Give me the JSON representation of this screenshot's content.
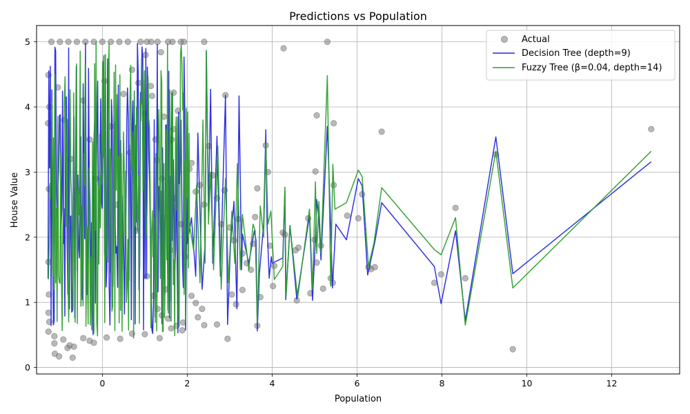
{
  "chart_data": {
    "type": "scatter",
    "title": "Predictions vs Population",
    "xlabel": "Population",
    "ylabel": "House Value",
    "xlim": [
      -1.55,
      13.6
    ],
    "ylim": [
      -0.1,
      5.25
    ],
    "xticks": [
      0,
      2,
      4,
      6,
      8,
      10,
      12
    ],
    "yticks": [
      0,
      1,
      2,
      3,
      4,
      5
    ],
    "grid": true,
    "legend_position": "top-right",
    "series": [
      {
        "name": "Actual",
        "kind": "scatter",
        "color": "#808080",
        "points": [
          [
            -1.27,
            4.49
          ],
          [
            -1.25,
            4.0
          ],
          [
            -1.28,
            3.75
          ],
          [
            -1.26,
            2.74
          ],
          [
            -1.27,
            1.62
          ],
          [
            -1.26,
            1.12
          ],
          [
            -1.27,
            0.84
          ],
          [
            -1.25,
            0.7
          ],
          [
            -1.27,
            0.55
          ],
          [
            -1.13,
            0.48
          ],
          [
            -1.13,
            0.37
          ],
          [
            -1.12,
            0.21
          ],
          [
            -1.02,
            0.17
          ],
          [
            -0.92,
            0.43
          ],
          [
            -0.82,
            0.3
          ],
          [
            -0.77,
            0.34
          ],
          [
            -0.7,
            0.15
          ],
          [
            -0.67,
            0.32
          ],
          [
            -0.45,
            0.45
          ],
          [
            -0.3,
            0.41
          ],
          [
            -0.2,
            0.38
          ],
          [
            0.1,
            0.46
          ],
          [
            0.42,
            0.44
          ],
          [
            0.7,
            0.52
          ],
          [
            1.0,
            0.51
          ],
          [
            1.35,
            0.45
          ],
          [
            -1.2,
            5.0
          ],
          [
            -1.0,
            5.0
          ],
          [
            -0.8,
            5.0
          ],
          [
            -0.6,
            5.0
          ],
          [
            -0.4,
            5.0
          ],
          [
            -0.2,
            5.0
          ],
          [
            0.0,
            5.0
          ],
          [
            0.2,
            5.0
          ],
          [
            0.4,
            5.0
          ],
          [
            0.6,
            5.0
          ],
          [
            0.9,
            5.0
          ],
          [
            1.05,
            5.0
          ],
          [
            1.15,
            5.0
          ],
          [
            1.3,
            5.0
          ],
          [
            1.55,
            5.0
          ],
          [
            1.65,
            5.0
          ],
          [
            1.85,
            5.0
          ],
          [
            1.92,
            5.0
          ],
          [
            2.4,
            5.0
          ],
          [
            -1.05,
            4.3
          ],
          [
            -0.9,
            3.8
          ],
          [
            -0.75,
            3.2
          ],
          [
            -0.6,
            2.7
          ],
          [
            -0.45,
            4.1
          ],
          [
            -0.3,
            3.5
          ],
          [
            -0.15,
            2.9
          ],
          [
            0.05,
            4.4
          ],
          [
            0.2,
            3.7
          ],
          [
            0.35,
            2.5
          ],
          [
            0.5,
            4.2
          ],
          [
            0.65,
            3.3
          ],
          [
            0.8,
            2.1
          ],
          [
            0.7,
            4.57
          ],
          [
            0.85,
            4.37
          ],
          [
            1.02,
            4.8
          ],
          [
            1.38,
            4.84
          ],
          [
            1.14,
            4.32
          ],
          [
            1.0,
            3.9
          ],
          [
            1.17,
            4.17
          ],
          [
            1.28,
            3.18
          ],
          [
            1.45,
            3.85
          ],
          [
            1.55,
            3.46
          ],
          [
            1.63,
            3.5
          ],
          [
            1.68,
            3.66
          ],
          [
            1.68,
            4.22
          ],
          [
            1.78,
            3.94
          ],
          [
            1.25,
            3.5
          ],
          [
            1.4,
            2.9
          ],
          [
            1.5,
            2.3
          ],
          [
            1.6,
            1.8
          ],
          [
            1.7,
            2.6
          ],
          [
            1.85,
            2.2
          ],
          [
            1.95,
            1.7
          ],
          [
            2.05,
            3.05
          ],
          [
            2.1,
            3.14
          ],
          [
            2.2,
            2.7
          ],
          [
            2.3,
            2.8
          ],
          [
            2.4,
            2.5
          ],
          [
            2.5,
            3.4
          ],
          [
            2.6,
            2.95
          ],
          [
            2.7,
            2.6
          ],
          [
            2.8,
            2.2
          ],
          [
            2.88,
            2.72
          ],
          [
            2.9,
            4.18
          ],
          [
            3.0,
            2.15
          ],
          [
            3.1,
            1.95
          ],
          [
            3.2,
            2.28
          ],
          [
            3.3,
            1.75
          ],
          [
            3.4,
            1.6
          ],
          [
            3.55,
            1.9
          ],
          [
            3.6,
            2.31
          ],
          [
            3.65,
            2.75
          ],
          [
            3.85,
            3.41
          ],
          [
            3.9,
            3.0
          ],
          [
            3.95,
            1.87
          ],
          [
            1.05,
            1.4
          ],
          [
            1.2,
            1.1
          ],
          [
            1.3,
            0.9
          ],
          [
            1.4,
            0.8
          ],
          [
            1.5,
            1.2
          ],
          [
            1.55,
            0.75
          ],
          [
            1.62,
            0.6
          ],
          [
            1.75,
            0.64
          ],
          [
            1.88,
            0.57
          ],
          [
            1.9,
            0.69
          ],
          [
            2.1,
            1.1
          ],
          [
            2.2,
            0.99
          ],
          [
            2.25,
            0.77
          ],
          [
            2.35,
            0.9
          ],
          [
            2.4,
            0.65
          ],
          [
            2.7,
            0.66
          ],
          [
            2.95,
            0.44
          ],
          [
            3.05,
            1.12
          ],
          [
            3.15,
            0.97
          ],
          [
            3.3,
            1.19
          ],
          [
            3.5,
            1.5
          ],
          [
            3.65,
            0.64
          ],
          [
            3.72,
            1.08
          ],
          [
            4.02,
            1.25
          ],
          [
            4.05,
            1.56
          ],
          [
            4.27,
            4.9
          ],
          [
            4.25,
            2.07
          ],
          [
            4.3,
            2.04
          ],
          [
            4.55,
            1.8
          ],
          [
            4.58,
            1.03
          ],
          [
            4.62,
            1.84
          ],
          [
            4.85,
            2.29
          ],
          [
            4.9,
            1.14
          ],
          [
            5.0,
            1.96
          ],
          [
            5.02,
            3.01
          ],
          [
            5.05,
            3.87
          ],
          [
            5.05,
            1.61
          ],
          [
            5.15,
            1.87
          ],
          [
            5.2,
            1.21
          ],
          [
            5.3,
            5.0
          ],
          [
            5.38,
            1.37
          ],
          [
            5.43,
            1.3
          ],
          [
            5.45,
            2.8
          ],
          [
            5.45,
            3.75
          ],
          [
            5.77,
            2.33
          ],
          [
            6.03,
            2.29
          ],
          [
            6.12,
            2.66
          ],
          [
            6.27,
            1.54
          ],
          [
            6.33,
            1.51
          ],
          [
            6.42,
            1.54
          ],
          [
            6.58,
            3.62
          ],
          [
            7.82,
            1.3
          ],
          [
            7.98,
            1.43
          ],
          [
            8.32,
            2.45
          ],
          [
            8.55,
            1.37
          ],
          [
            9.27,
            3.27
          ],
          [
            9.67,
            0.28
          ],
          [
            12.93,
            3.66
          ]
        ]
      },
      {
        "name": "Decision Tree (depth=9)",
        "kind": "line",
        "color": "#2727e0",
        "cluster": {
          "x_start": -1.28,
          "x_end": 2.0,
          "step": 0.018,
          "y_min": 0.5,
          "y_max": 5.0,
          "seed": 7
        },
        "points": [
          [
            2.0,
            1.9
          ],
          [
            2.1,
            2.3
          ],
          [
            2.2,
            1.4
          ],
          [
            2.25,
            3.6
          ],
          [
            2.35,
            1.2
          ],
          [
            2.42,
            1.9
          ],
          [
            2.45,
            4.85
          ],
          [
            2.5,
            2.4
          ],
          [
            2.55,
            4.27
          ],
          [
            2.6,
            1.6
          ],
          [
            2.7,
            3.55
          ],
          [
            2.78,
            1.4
          ],
          [
            2.9,
            4.18
          ],
          [
            2.95,
            0.66
          ],
          [
            3.02,
            1.9
          ],
          [
            3.1,
            2.55
          ],
          [
            3.17,
            0.9
          ],
          [
            3.22,
            4.17
          ],
          [
            3.28,
            1.5
          ],
          [
            3.3,
            2.05
          ],
          [
            3.45,
            1.6
          ],
          [
            3.58,
            2.1
          ],
          [
            3.62,
            1.95
          ],
          [
            3.65,
            0.56
          ],
          [
            3.7,
            1.45
          ],
          [
            3.8,
            2.2
          ],
          [
            3.85,
            3.65
          ],
          [
            3.88,
            2.2
          ],
          [
            3.93,
            1.37
          ],
          [
            3.98,
            1.7
          ],
          [
            4.0,
            1.6
          ],
          [
            4.25,
            1.68
          ],
          [
            4.3,
            2.72
          ],
          [
            4.32,
            1.04
          ],
          [
            4.42,
            2.18
          ],
          [
            4.58,
            1.05
          ],
          [
            4.88,
            2.33
          ],
          [
            4.95,
            1.03
          ],
          [
            5.02,
            1.97
          ],
          [
            5.05,
            2.58
          ],
          [
            5.1,
            2.28
          ],
          [
            5.15,
            1.65
          ],
          [
            5.3,
            3.7
          ],
          [
            5.38,
            2.18
          ],
          [
            5.42,
            1.22
          ],
          [
            5.5,
            2.2
          ],
          [
            5.75,
            1.96
          ],
          [
            6.03,
            2.9
          ],
          [
            6.12,
            2.79
          ],
          [
            6.25,
            1.42
          ],
          [
            6.42,
            1.93
          ],
          [
            6.58,
            2.53
          ],
          [
            7.82,
            1.55
          ],
          [
            7.98,
            0.98
          ],
          [
            8.32,
            2.1
          ],
          [
            8.55,
            0.72
          ],
          [
            9.27,
            3.54
          ],
          [
            9.67,
            1.44
          ],
          [
            12.93,
            3.16
          ]
        ]
      },
      {
        "name": "Fuzzy Tree (β=0.04, depth=14)",
        "kind": "line",
        "color": "#2e9d2e",
        "cluster": {
          "x_start": -1.27,
          "x_end": 2.05,
          "step": 0.017,
          "y_min": 0.45,
          "y_max": 5.0,
          "seed": 23
        },
        "points": [
          [
            2.05,
            2.2
          ],
          [
            2.15,
            1.8
          ],
          [
            2.22,
            2.8
          ],
          [
            2.3,
            1.3
          ],
          [
            2.37,
            3.8
          ],
          [
            2.42,
            1.6
          ],
          [
            2.45,
            4.87
          ],
          [
            2.5,
            2.2
          ],
          [
            2.55,
            3.0
          ],
          [
            2.62,
            1.5
          ],
          [
            2.72,
            3.4
          ],
          [
            2.8,
            1.2
          ],
          [
            2.9,
            2.9
          ],
          [
            2.97,
            1.3
          ],
          [
            3.05,
            2.4
          ],
          [
            3.12,
            1.6
          ],
          [
            3.18,
            3.13
          ],
          [
            3.25,
            1.5
          ],
          [
            3.3,
            2.35
          ],
          [
            3.45,
            1.5
          ],
          [
            3.55,
            2.2
          ],
          [
            3.6,
            2.1
          ],
          [
            3.65,
            0.67
          ],
          [
            3.72,
            2.48
          ],
          [
            3.8,
            2.0
          ],
          [
            3.85,
            3.45
          ],
          [
            3.9,
            2.2
          ],
          [
            3.97,
            2.4
          ],
          [
            4.05,
            1.35
          ],
          [
            4.25,
            1.55
          ],
          [
            4.3,
            2.77
          ],
          [
            4.33,
            1.1
          ],
          [
            4.42,
            2.18
          ],
          [
            4.6,
            1.07
          ],
          [
            4.88,
            2.43
          ],
          [
            4.95,
            1.2
          ],
          [
            5.02,
            2.85
          ],
          [
            5.05,
            1.75
          ],
          [
            5.1,
            2.55
          ],
          [
            5.15,
            1.75
          ],
          [
            5.3,
            4.48
          ],
          [
            5.38,
            1.25
          ],
          [
            5.43,
            3.12
          ],
          [
            5.48,
            2.43
          ],
          [
            5.75,
            2.53
          ],
          [
            6.03,
            3.03
          ],
          [
            6.12,
            2.93
          ],
          [
            6.27,
            1.55
          ],
          [
            6.4,
            1.92
          ],
          [
            6.58,
            2.76
          ],
          [
            7.82,
            1.81
          ],
          [
            7.98,
            1.73
          ],
          [
            8.32,
            2.3
          ],
          [
            8.55,
            0.65
          ],
          [
            9.27,
            3.32
          ],
          [
            9.67,
            1.22
          ],
          [
            12.93,
            3.32
          ]
        ]
      }
    ]
  }
}
